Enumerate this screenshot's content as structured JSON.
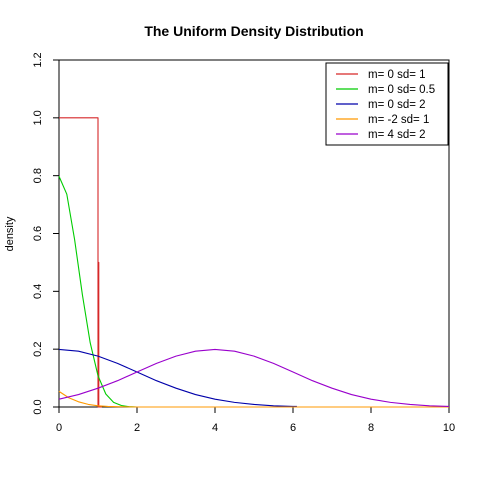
{
  "chart_data": {
    "type": "line",
    "title": "The Uniform Density Distribution",
    "xlabel": "",
    "ylabel": "density",
    "xlim": [
      0,
      10
    ],
    "ylim": [
      0,
      1.2
    ],
    "x_ticks": [
      "0",
      "2",
      "4",
      "6",
      "8",
      "10"
    ],
    "y_ticks": [
      "0.0",
      "0.2",
      "0.4",
      "0.6",
      "0.8",
      "1.0",
      "1.2"
    ],
    "grid": false,
    "legend_position": "top-right",
    "series": [
      {
        "name": "m= 0  sd= 1",
        "color": "#d62728",
        "x": [
          0,
          1,
          1,
          1.02,
          1.02,
          1.1
        ],
        "y": [
          1.0,
          1.0,
          0,
          0.5,
          0,
          0
        ]
      },
      {
        "name": "m= 0  sd= 0.5",
        "color": "#00cc00",
        "x": [
          0,
          0.2,
          0.4,
          0.6,
          0.8,
          1.0,
          1.2,
          1.4,
          1.6,
          1.8,
          2.0,
          3,
          4,
          5,
          6,
          7,
          8,
          9,
          10
        ],
        "y": [
          0.798,
          0.736,
          0.579,
          0.388,
          0.222,
          0.108,
          0.045,
          0.016,
          0.005,
          0.001,
          0.0,
          0,
          0,
          0,
          0,
          0,
          0,
          0,
          0
        ]
      },
      {
        "name": "m= 0  sd= 2",
        "color": "#0000aa",
        "x": [
          0,
          0.5,
          1,
          1.5,
          2,
          2.5,
          3,
          3.5,
          4,
          4.5,
          5,
          5.5,
          6,
          6.1
        ],
        "y": [
          0.199,
          0.193,
          0.176,
          0.151,
          0.121,
          0.091,
          0.065,
          0.043,
          0.027,
          0.016,
          0.009,
          0.004,
          0.002,
          0.002
        ]
      },
      {
        "name": "m= -2  sd= 1",
        "color": "#ff9900",
        "x": [
          0,
          0.25,
          0.5,
          0.75,
          1.0,
          1.25,
          1.5,
          2,
          3,
          4,
          5,
          6,
          7,
          8,
          9,
          10
        ],
        "y": [
          0.054,
          0.032,
          0.018,
          0.009,
          0.004,
          0.002,
          0.001,
          0,
          0,
          0,
          0,
          0,
          0,
          0,
          0,
          0
        ]
      },
      {
        "name": "m= 4  sd= 2",
        "color": "#9900cc",
        "x": [
          0,
          0.5,
          1,
          1.5,
          2,
          2.5,
          3,
          3.5,
          4,
          4.5,
          5,
          5.5,
          6,
          6.5,
          7,
          7.5,
          8,
          8.5,
          9,
          9.5,
          10
        ],
        "y": [
          0.027,
          0.043,
          0.065,
          0.091,
          0.121,
          0.151,
          0.176,
          0.193,
          0.199,
          0.193,
          0.176,
          0.151,
          0.121,
          0.091,
          0.065,
          0.043,
          0.027,
          0.016,
          0.009,
          0.004,
          0.002
        ]
      }
    ]
  }
}
